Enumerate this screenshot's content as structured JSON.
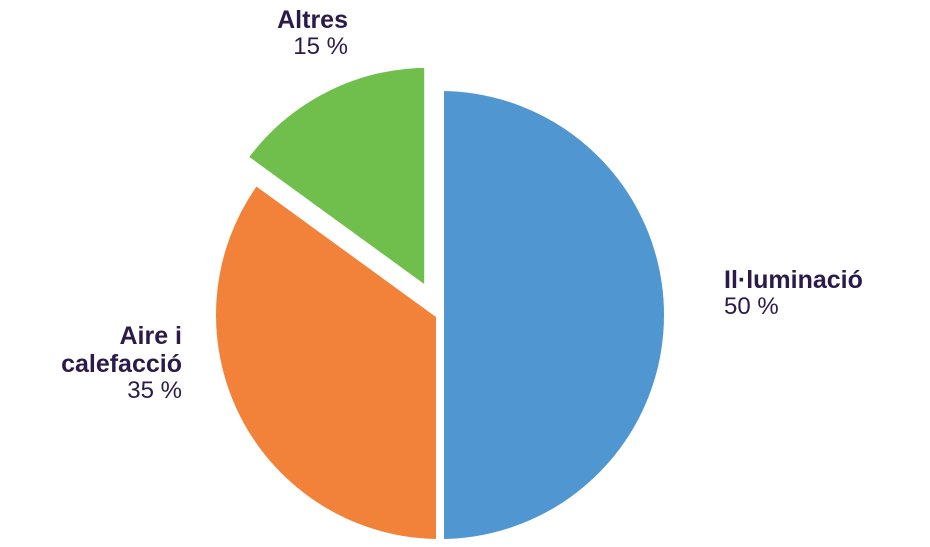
{
  "chart_data": {
    "type": "pie",
    "slices": [
      {
        "label": "Il·luminació",
        "value": 50,
        "value_text": "50 %",
        "color": "#5096d0"
      },
      {
        "label": "Aire i calefacció",
        "label_lines": [
          "Aire i",
          "calefacció"
        ],
        "value": 35,
        "value_text": "35 %",
        "color": "#f2813a"
      },
      {
        "label": "Altres",
        "value": 15,
        "value_text": "15 %",
        "color": "#70bf4d"
      }
    ],
    "exploded": "Altres",
    "label_color": "#2b1a4a"
  }
}
